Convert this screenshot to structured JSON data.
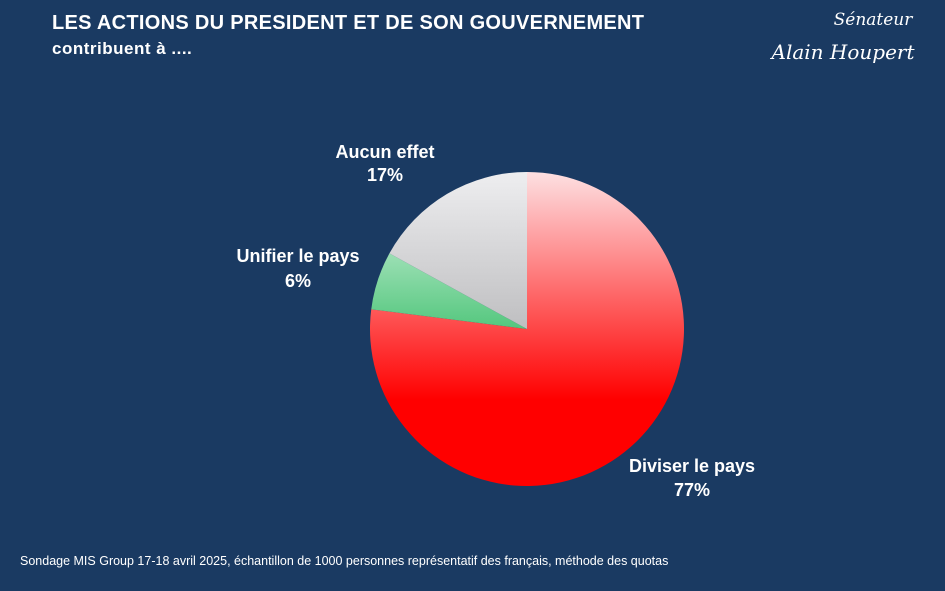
{
  "header": {
    "title": "LES ACTIONS DU PRESIDENT ET DE SON GOUVERNEMENT",
    "subtitle": "contribuent à ...."
  },
  "signature": {
    "line1": "Sénateur",
    "line2": "Alain Houpert"
  },
  "chart_data": {
    "type": "pie",
    "title": "LES ACTIONS DU PRESIDENT ET DE SON GOUVERNEMENT contribuent à ....",
    "start_angle": "12 o'clock, clockwise",
    "slices": [
      {
        "label": "Diviser le pays",
        "value": 77,
        "value_label": "77%",
        "color": "#ff0000",
        "color_light": "#fde0e2"
      },
      {
        "label": "Unifier le pays",
        "value": 6,
        "value_label": "6%",
        "color": "#10b04a",
        "color_light": "#eafaf0"
      },
      {
        "label": "Aucun effet",
        "value": 17,
        "value_label": "17%",
        "color": "#a9a9ab",
        "color_light": "#eeeef0"
      }
    ]
  },
  "footer": {
    "source": "Sondage MIS Group 17-18 avril 2025, échantillon de 1000 personnes représentatif des français, méthode des quotas"
  }
}
